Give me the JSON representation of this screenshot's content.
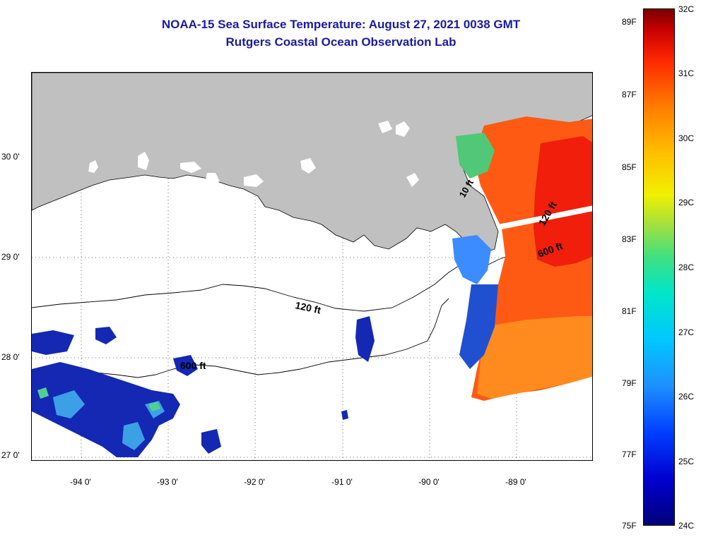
{
  "title": {
    "line1": "NOAA-15 Sea Surface Temperature:  August 27, 2021 0038 GMT",
    "line2": "Rutgers Coastal Ocean Observation Lab"
  },
  "axes": {
    "lat_labels": [
      "30 0'",
      "29 0'",
      "28 0'",
      "27 0'"
    ],
    "lon_labels": [
      "-94 0'",
      "-93 0'",
      "-92 0'",
      "-91 0'",
      "-90 0'",
      "-89 0'"
    ]
  },
  "contours": {
    "label_120_main": "120 ft",
    "label_600_west": "600 ft",
    "label_600_east": "600 ft",
    "label_120_east": "120 ft",
    "label_10_delta": "10 ft"
  },
  "colorbar": {
    "fahrenheit": [
      "89F",
      "87F",
      "85F",
      "83F",
      "81F",
      "79F",
      "77F",
      "75F"
    ],
    "celsius": [
      "32C",
      "31C",
      "30C",
      "29C",
      "28C",
      "27C",
      "26C",
      "25C",
      "24C"
    ]
  },
  "colors": {
    "title": "#1a1aa0",
    "land": "#c0c0c0",
    "warm": "#ff5a14",
    "cool": "#1428b4"
  }
}
